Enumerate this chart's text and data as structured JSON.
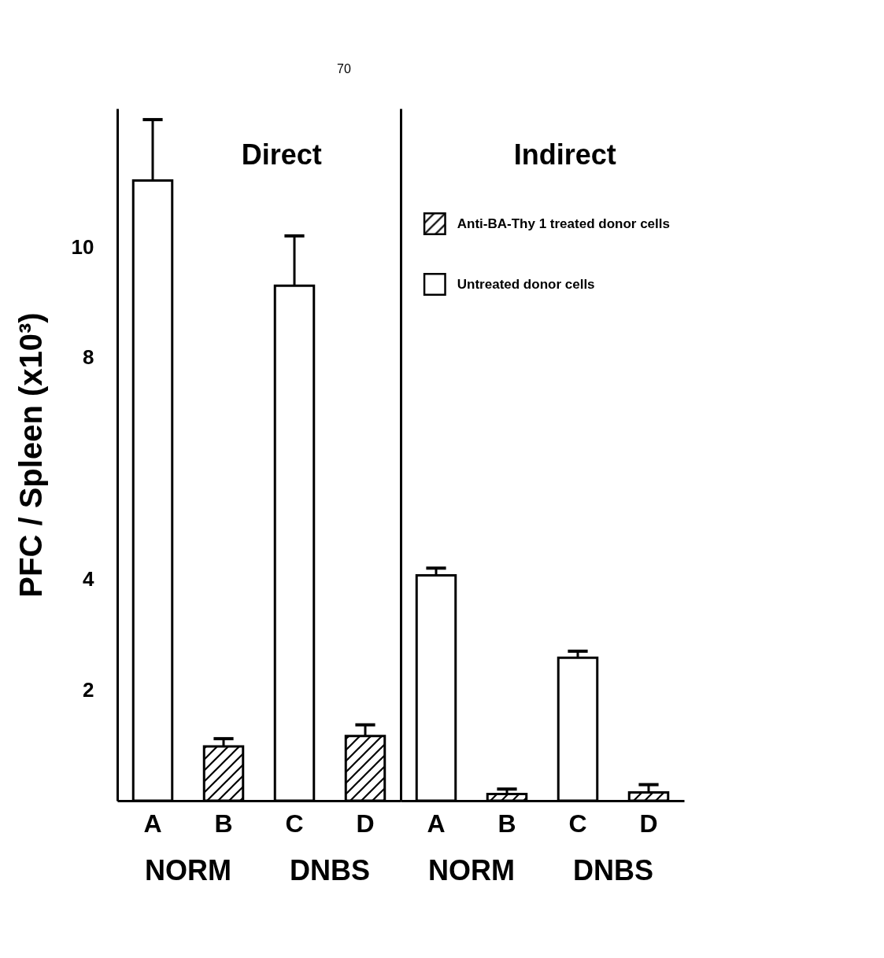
{
  "chart_data": [
    {
      "type": "bar",
      "title": "Direct",
      "ylabel": "PFC / Spleen (x10³)",
      "categories": [
        "A",
        "B",
        "C",
        "D"
      ],
      "series": [
        {
          "color": "#000000",
          "values": [
            null,
            0.98,
            null,
            1.17
          ],
          "errors": [
            null,
            [
              0.98,
              1.12
            ],
            null,
            [
              1.17,
              1.37
            ]
          ]
        },
        {
          "color": "#ffffff",
          "values": [
            11.2,
            null,
            9.3,
            null
          ],
          "errors": [
            [
              11.2,
              12.3
            ],
            null,
            [
              9.3,
              10.2
            ],
            null
          ]
        }
      ],
      "ylim": [
        0,
        12.5
      ],
      "yticks": [
        2,
        4,
        8,
        10
      ],
      "grid": false,
      "annotations": [
        "NORM",
        "DNBS",
        "70"
      ]
    },
    {
      "type": "bar",
      "title": "Indirect",
      "categories": [
        "A",
        "B",
        "C",
        "D"
      ],
      "series": [
        {
          "name": "Anti-BA-Thy 1 treated donor cells",
          "color": "#000000",
          "values": [
            null,
            0.12,
            null,
            0.15
          ],
          "errors": [
            null,
            [
              0.12,
              0.21
            ],
            null,
            [
              0.15,
              0.29
            ]
          ]
        },
        {
          "name": "Untreated donor cells",
          "color": "#ffffff",
          "values": [
            4.07,
            null,
            2.58,
            null
          ],
          "errors": [
            [
              4.07,
              4.2
            ],
            null,
            [
              2.58,
              2.7
            ],
            null
          ]
        }
      ],
      "ylim": [
        0,
        12.5
      ],
      "tick_labels": "x",
      "grid": false,
      "legend": "top right",
      "annotations": [
        "NORM",
        "DNBS"
      ]
    }
  ]
}
